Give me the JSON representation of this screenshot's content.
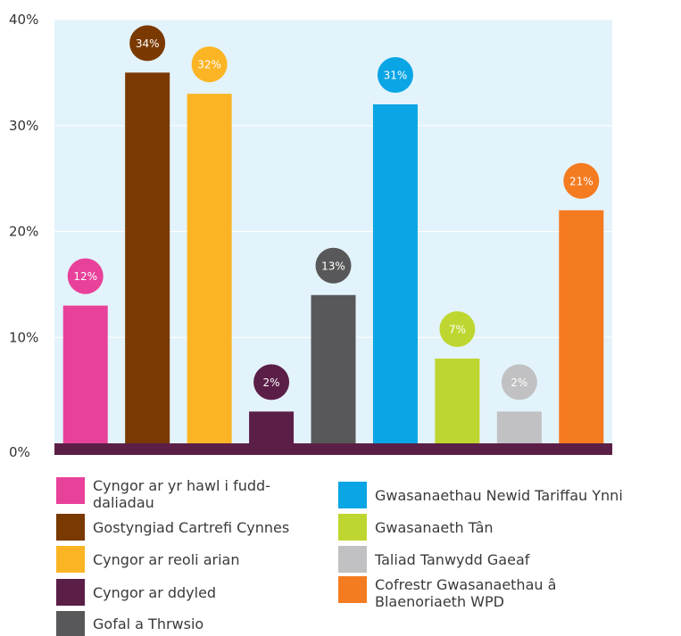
{
  "chart_data": {
    "type": "bar",
    "categories": [
      "Cyngor ar yr hawl i fudd-daliadau",
      "Gostyngiad Cartrefi Cynnes",
      "Cyngor ar reoli arian",
      "Cyngor ar ddyled",
      "Gofal a Thrwsio",
      "Gwasanaethau Newid Tariffau Ynni",
      "Gwasanaeth Tân",
      "Taliad Tanwydd Gaeaf",
      "Cofrestr Gwasanaethau â Blaenoriaeth WPD"
    ],
    "values": [
      12,
      34,
      32,
      2,
      13,
      31,
      7,
      2,
      21
    ],
    "labels": [
      "12%",
      "34%",
      "32%",
      "2%",
      "13%",
      "31%",
      "7%",
      "2%",
      "21%"
    ],
    "colors": [
      "#e8419a",
      "#7a3900",
      "#fbb524",
      "#5b1f47",
      "#58585a",
      "#0aa5e4",
      "#bfd630",
      "#c1c1c3",
      "#f47b20"
    ],
    "ylim": [
      0,
      40
    ],
    "yticks": [
      0,
      10,
      20,
      30,
      40
    ],
    "ytick_labels": [
      "0%",
      "10%",
      "20%",
      "30%",
      "40%"
    ],
    "grid": true,
    "plot_background": "#e3f3fb",
    "baseline_color": "#5b1f47",
    "legend_position": "bottom"
  },
  "legend": {
    "left": [
      {
        "label": "Cyngor ar yr hawl i fudd-daliadau",
        "color": "#e8419a"
      },
      {
        "label": "Gostyngiad Cartrefi Cynnes",
        "color": "#7a3900"
      },
      {
        "label": "Cyngor ar reoli arian",
        "color": "#fbb524"
      },
      {
        "label": "Cyngor ar ddyled",
        "color": "#5b1f47"
      },
      {
        "label": "Gofal a Thrwsio",
        "color": "#58585a"
      }
    ],
    "right": [
      {
        "label": "Gwasanaethau Newid Tariffau Ynni",
        "color": "#0aa5e4"
      },
      {
        "label": "Gwasanaeth Tân",
        "color": "#bfd630"
      },
      {
        "label": "Taliad Tanwydd Gaeaf",
        "color": "#c1c1c3"
      },
      {
        "label": "Cofrestr Gwasanaethau â Blaenoriaeth WPD",
        "color": "#f47b20"
      }
    ]
  }
}
